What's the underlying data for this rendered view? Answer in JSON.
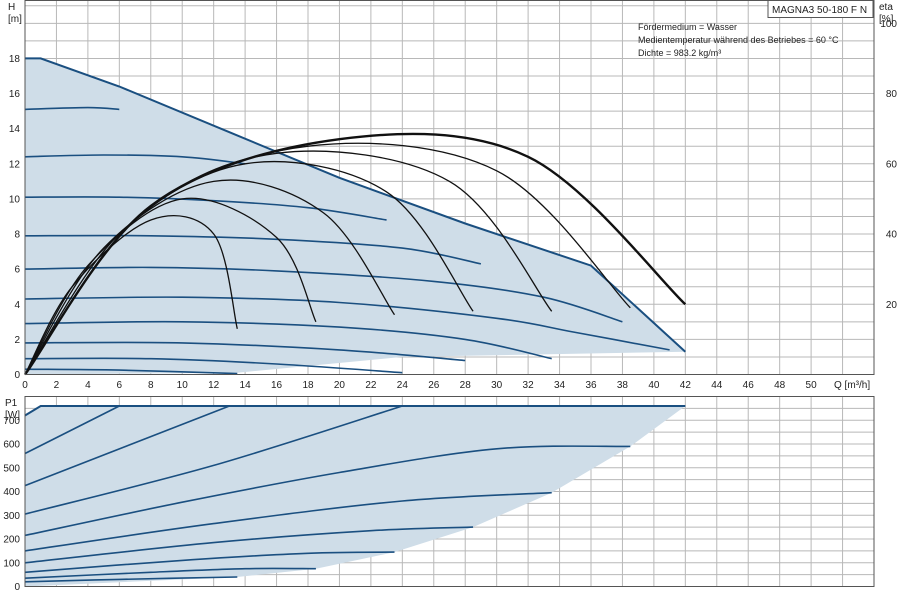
{
  "chart_data": [
    {
      "id": "head",
      "type": "line",
      "title": "MAGNA3 50-180 F N",
      "notes": [
        "Fördermedium = Wasser",
        "Medientemperatur während des Betriebes = 60 °C",
        "Dichte = 983.2 kg/m³"
      ],
      "ylabel_symbol": "H",
      "ylabel_unit": "[m]",
      "y2label_symbol": "eta",
      "y2label_unit": "[%]",
      "xlabel": "Q [m³/h]",
      "xlim": [
        0,
        54
      ],
      "ylim": [
        0,
        21.3
      ],
      "y2lim": [
        0,
        106.5
      ],
      "xticks": [
        0,
        2,
        4,
        6,
        8,
        10,
        12,
        14,
        16,
        18,
        20,
        22,
        24,
        26,
        28,
        30,
        32,
        34,
        36,
        38,
        40,
        42,
        44,
        46,
        48,
        50
      ],
      "yticks": [
        0,
        2,
        4,
        6,
        8,
        10,
        12,
        14,
        16,
        18
      ],
      "y2ticks": [
        20,
        40,
        60,
        80,
        100
      ],
      "grid": true,
      "operating_area": [
        [
          0,
          0
        ],
        [
          0,
          18
        ],
        [
          1,
          18
        ],
        [
          6,
          16.4
        ],
        [
          13,
          13.8
        ],
        [
          20,
          11.2
        ],
        [
          28,
          8.6
        ],
        [
          36,
          6.2
        ],
        [
          42,
          1.3
        ],
        [
          24,
          1.0
        ],
        [
          13.5,
          0.1
        ],
        [
          0,
          0
        ]
      ],
      "head_curves": [
        {
          "points": [
            [
              0,
              18
            ],
            [
              1,
              18
            ],
            [
              6,
              16.4
            ],
            [
              13,
              13.8
            ],
            [
              20,
              11.2
            ],
            [
              28,
              8.6
            ],
            [
              36,
              6.2
            ],
            [
              42,
              1.3
            ]
          ]
        },
        {
          "points": [
            [
              0,
              15.1
            ],
            [
              4,
              15.2
            ],
            [
              6,
              15.1
            ]
          ]
        },
        {
          "points": [
            [
              0,
              12.4
            ],
            [
              5,
              12.5
            ],
            [
              10,
              12.4
            ],
            [
              14,
              12.0
            ]
          ]
        },
        {
          "points": [
            [
              0,
              10.1
            ],
            [
              6,
              10.1
            ],
            [
              12,
              9.9
            ],
            [
              18,
              9.5
            ],
            [
              23,
              8.8
            ]
          ]
        },
        {
          "points": [
            [
              0,
              7.9
            ],
            [
              8,
              7.9
            ],
            [
              16,
              7.7
            ],
            [
              24,
              7.2
            ],
            [
              29,
              6.3
            ]
          ]
        },
        {
          "points": [
            [
              0,
              6.0
            ],
            [
              8,
              6.1
            ],
            [
              16,
              5.9
            ],
            [
              26,
              5.3
            ],
            [
              33,
              4.4
            ],
            [
              38,
              3.0
            ]
          ]
        },
        {
          "points": [
            [
              0,
              4.3
            ],
            [
              10,
              4.4
            ],
            [
              20,
              4.1
            ],
            [
              30,
              3.2
            ],
            [
              35,
              2.4
            ],
            [
              41,
              1.4
            ]
          ]
        },
        {
          "points": [
            [
              0,
              2.9
            ],
            [
              10,
              3.0
            ],
            [
              20,
              2.7
            ],
            [
              28,
              2.0
            ],
            [
              33.5,
              0.9
            ]
          ]
        },
        {
          "points": [
            [
              0,
              1.8
            ],
            [
              10,
              1.8
            ],
            [
              20,
              1.4
            ],
            [
              28,
              0.8
            ]
          ]
        },
        {
          "points": [
            [
              0,
              0.9
            ],
            [
              8,
              0.9
            ],
            [
              16,
              0.6
            ],
            [
              24,
              0.1
            ]
          ]
        },
        {
          "points": [
            [
              0,
              0.3
            ],
            [
              6,
              0.25
            ],
            [
              13.5,
              0.05
            ]
          ]
        }
      ],
      "efficiency_curves": [
        {
          "points": [
            [
              0,
              0
            ],
            [
              3,
              25
            ],
            [
              8,
              44
            ],
            [
              12,
              40
            ],
            [
              13.5,
              13
            ]
          ]
        },
        {
          "points": [
            [
              0,
              0
            ],
            [
              4,
              31
            ],
            [
              10,
              50
            ],
            [
              16,
              39
            ],
            [
              18.5,
              15
            ]
          ]
        },
        {
          "points": [
            [
              0,
              0
            ],
            [
              5,
              36
            ],
            [
              12,
              55
            ],
            [
              19,
              46
            ],
            [
              23.5,
              17
            ]
          ]
        },
        {
          "points": [
            [
              0,
              0
            ],
            [
              6,
              40
            ],
            [
              14,
              60
            ],
            [
              23,
              52
            ],
            [
              28.5,
              18
            ]
          ]
        },
        {
          "points": [
            [
              0,
              0
            ],
            [
              7,
              44
            ],
            [
              16,
              63
            ],
            [
              27,
              55
            ],
            [
              33.5,
              18
            ]
          ]
        },
        {
          "points": [
            [
              0,
              0
            ],
            [
              7.5,
              46
            ],
            [
              18,
              65
            ],
            [
              30,
              58
            ],
            [
              38.5,
              19
            ]
          ]
        },
        {
          "points": [
            [
              0,
              0
            ],
            [
              8,
              48
            ],
            [
              20,
              67
            ],
            [
              32,
              62
            ],
            [
              42,
              20
            ]
          ]
        }
      ]
    },
    {
      "id": "power",
      "type": "line",
      "ylabel_symbol": "P1",
      "ylabel_unit": "[W]",
      "xlim": [
        0,
        54
      ],
      "ylim": [
        0,
        800
      ],
      "yticks": [
        0,
        100,
        200,
        300,
        400,
        500,
        600,
        700
      ],
      "grid": true,
      "operating_area": [
        [
          0,
          0
        ],
        [
          0,
          720
        ],
        [
          1,
          760
        ],
        [
          42,
          760
        ],
        [
          38.5,
          590
        ],
        [
          33.5,
          395
        ],
        [
          28.5,
          250
        ],
        [
          23.5,
          145
        ],
        [
          18.5,
          75
        ],
        [
          13.5,
          40
        ],
        [
          0,
          0
        ]
      ],
      "power_curves": [
        {
          "points": [
            [
              0,
              720
            ],
            [
              1,
              760
            ],
            [
              42,
              760
            ]
          ]
        },
        {
          "points": [
            [
              0,
              560
            ],
            [
              6,
              760
            ]
          ]
        },
        {
          "points": [
            [
              0,
              425
            ],
            [
              13,
              760
            ]
          ]
        },
        {
          "points": [
            [
              0,
              305
            ],
            [
              12,
              510
            ],
            [
              24,
              760
            ]
          ]
        },
        {
          "points": [
            [
              0,
              215
            ],
            [
              10,
              355
            ],
            [
              20,
              480
            ],
            [
              30,
              580
            ],
            [
              38.5,
              590
            ]
          ]
        },
        {
          "points": [
            [
              0,
              150
            ],
            [
              12,
              265
            ],
            [
              24,
              360
            ],
            [
              33.5,
              395
            ]
          ]
        },
        {
          "points": [
            [
              0,
              100
            ],
            [
              12,
              185
            ],
            [
              22,
              235
            ],
            [
              28.5,
              250
            ]
          ]
        },
        {
          "points": [
            [
              0,
              60
            ],
            [
              10,
              110
            ],
            [
              18,
              140
            ],
            [
              23.5,
              145
            ]
          ]
        },
        {
          "points": [
            [
              0,
              35
            ],
            [
              8,
              60
            ],
            [
              14,
              75
            ],
            [
              18.5,
              75
            ]
          ]
        },
        {
          "points": [
            [
              0,
              20
            ],
            [
              6,
              30
            ],
            [
              13.5,
              40
            ]
          ]
        }
      ]
    }
  ]
}
